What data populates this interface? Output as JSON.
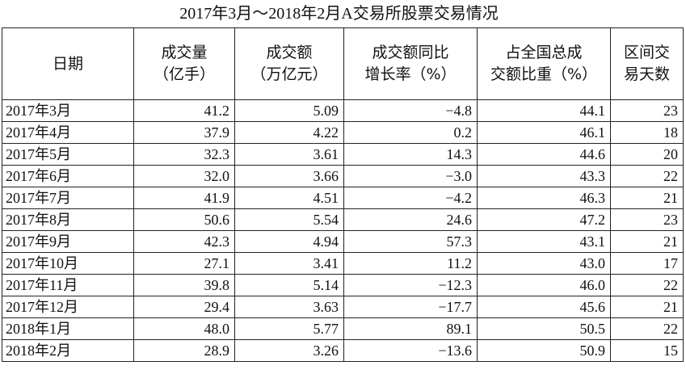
{
  "header": {
    "title": "2017年3月～2018年2月A交易所股票交易情况"
  },
  "table": {
    "columns": [
      [
        "日期"
      ],
      [
        "成交量",
        "（亿手）"
      ],
      [
        "成交额",
        "（万亿元）"
      ],
      [
        "成交额同比",
        "增长率（%）"
      ],
      [
        "占全国总成",
        "交额比重（%）"
      ],
      [
        "区间交",
        "易天数"
      ]
    ],
    "rows": [
      [
        "2017年3月",
        "41.2",
        "5.09",
        "−4.8",
        "44.1",
        "23"
      ],
      [
        "2017年4月",
        "37.9",
        "4.22",
        "0.2",
        "46.1",
        "18"
      ],
      [
        "2017年5月",
        "32.3",
        "3.61",
        "14.3",
        "44.6",
        "20"
      ],
      [
        "2017年6月",
        "32.0",
        "3.66",
        "−3.0",
        "43.3",
        "22"
      ],
      [
        "2017年7月",
        "41.9",
        "4.51",
        "−4.2",
        "46.3",
        "21"
      ],
      [
        "2017年8月",
        "50.6",
        "5.54",
        "24.6",
        "47.2",
        "23"
      ],
      [
        "2017年9月",
        "42.3",
        "4.94",
        "57.3",
        "43.1",
        "21"
      ],
      [
        "2017年10月",
        "27.1",
        "3.41",
        "11.2",
        "43.0",
        "17"
      ],
      [
        "2017年11月",
        "39.8",
        "5.14",
        "−12.3",
        "46.0",
        "22"
      ],
      [
        "2017年12月",
        "29.4",
        "3.63",
        "−17.7",
        "45.6",
        "21"
      ],
      [
        "2018年1月",
        "48.0",
        "5.77",
        "89.1",
        "50.5",
        "22"
      ],
      [
        "2018年2月",
        "28.9",
        "3.26",
        "−13.6",
        "50.9",
        "15"
      ]
    ]
  }
}
